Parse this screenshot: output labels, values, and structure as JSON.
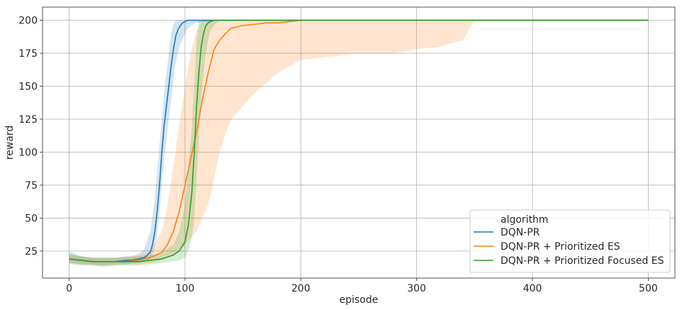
{
  "chart_data": {
    "type": "line",
    "xlabel": "episode",
    "ylabel": "reward",
    "xlim": [
      -23,
      523
    ],
    "ylim": [
      4.5,
      210
    ],
    "xticks": [
      0,
      100,
      200,
      300,
      400,
      500
    ],
    "yticks": [
      25,
      50,
      75,
      100,
      125,
      150,
      175,
      200
    ],
    "grid": true,
    "legend": {
      "title": "algorithm",
      "placement": "bottom-right"
    },
    "series": [
      {
        "name": "DQN-PR",
        "color": "#1f77b4",
        "x": [
          0,
          10,
          20,
          30,
          40,
          50,
          55,
          60,
          65,
          70,
          72,
          74,
          76,
          78,
          80,
          82,
          84,
          86,
          88,
          90,
          92,
          94,
          96,
          98,
          100,
          102,
          105,
          110,
          130,
          200,
          300,
          400,
          500
        ],
        "y": [
          19,
          18,
          17,
          17,
          17,
          18,
          18,
          19,
          20,
          24,
          30,
          40,
          55,
          75,
          100,
          120,
          135,
          150,
          165,
          178,
          188,
          193,
          196,
          198,
          199,
          200,
          200,
          200,
          200,
          200,
          200,
          200,
          200
        ],
        "lower": [
          16,
          15,
          15,
          14,
          15,
          15,
          16,
          16,
          17,
          19,
          22,
          28,
          38,
          55,
          75,
          95,
          110,
          125,
          140,
          155,
          168,
          176,
          182,
          186,
          190,
          193,
          196,
          198,
          200,
          200,
          200,
          200,
          200
        ],
        "upper": [
          23,
          21,
          20,
          20,
          20,
          21,
          21,
          23,
          27,
          40,
          52,
          65,
          85,
          105,
          125,
          145,
          160,
          175,
          190,
          197,
          200,
          200,
          200,
          200,
          200,
          200,
          200,
          200,
          200,
          200,
          200,
          200,
          200
        ]
      },
      {
        "name": "DQN-PR + Prioritized ES",
        "color": "#ff7f0e",
        "x": [
          0,
          10,
          20,
          30,
          40,
          50,
          60,
          70,
          80,
          85,
          90,
          95,
          100,
          105,
          110,
          115,
          120,
          125,
          130,
          135,
          140,
          150,
          160,
          170,
          180,
          190,
          200,
          220,
          250,
          280,
          300,
          320,
          340,
          350,
          400,
          500
        ],
        "y": [
          19,
          18,
          17,
          17,
          17,
          17,
          18,
          20,
          24,
          30,
          40,
          55,
          75,
          95,
          115,
          140,
          160,
          178,
          185,
          190,
          194,
          196,
          197,
          198,
          198,
          199,
          200,
          200,
          200,
          200,
          200,
          200,
          200,
          200,
          200,
          200
        ],
        "lower": [
          16,
          15,
          14,
          14,
          14,
          15,
          15,
          16,
          18,
          20,
          22,
          25,
          30,
          35,
          40,
          50,
          60,
          80,
          100,
          115,
          125,
          135,
          145,
          152,
          160,
          165,
          170,
          172,
          175,
          175,
          178,
          180,
          185,
          200,
          200,
          200
        ],
        "upper": [
          22,
          21,
          20,
          20,
          20,
          21,
          22,
          25,
          40,
          60,
          90,
          120,
          150,
          175,
          192,
          200,
          200,
          200,
          200,
          200,
          200,
          200,
          200,
          200,
          200,
          200,
          200,
          200,
          200,
          200,
          200,
          200,
          200,
          200,
          200,
          200
        ]
      },
      {
        "name": "DQN-PR + Prioritized Focused ES",
        "color": "#2ca02c",
        "x": [
          0,
          10,
          20,
          30,
          40,
          50,
          60,
          70,
          80,
          90,
          95,
          100,
          103,
          106,
          108,
          110,
          112,
          114,
          116,
          118,
          120,
          122,
          125,
          130,
          140,
          200,
          300,
          400,
          500
        ],
        "y": [
          19,
          18,
          17,
          17,
          17,
          17,
          17,
          18,
          19,
          22,
          25,
          32,
          45,
          70,
          100,
          135,
          160,
          180,
          190,
          196,
          198,
          199,
          200,
          200,
          200,
          200,
          200,
          200,
          200
        ],
        "lower": [
          15,
          14,
          14,
          13,
          14,
          14,
          14,
          15,
          16,
          17,
          18,
          20,
          25,
          35,
          50,
          80,
          110,
          140,
          160,
          175,
          185,
          192,
          196,
          200,
          200,
          200,
          200,
          200,
          200
        ],
        "upper": [
          25,
          21,
          20,
          20,
          20,
          20,
          21,
          22,
          24,
          30,
          40,
          60,
          90,
          120,
          150,
          185,
          200,
          200,
          200,
          200,
          200,
          200,
          200,
          200,
          200,
          200,
          200,
          200,
          200
        ]
      }
    ]
  }
}
